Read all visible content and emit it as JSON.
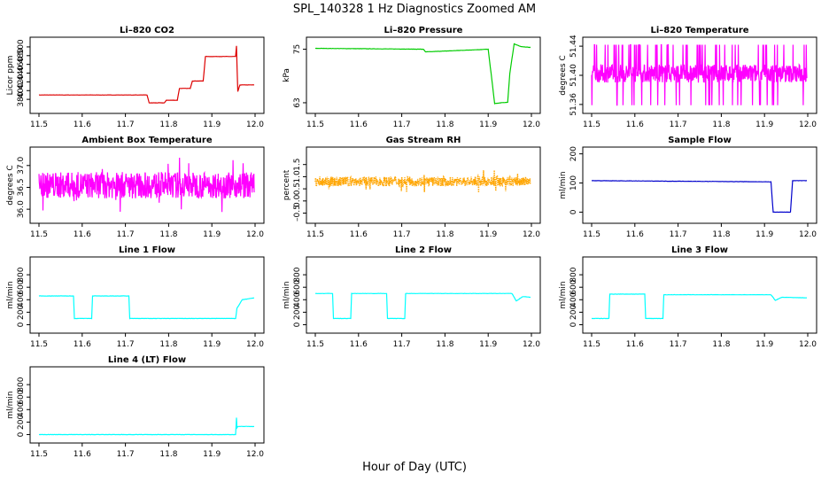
{
  "figure": {
    "title": "SPL_140328 1 Hz Diagnostics Zoomed AM",
    "xlabel": "Hour of Day (UTC)"
  },
  "chart_data": [
    {
      "type": "line",
      "title": "Li-820 CO2",
      "xlabel": "",
      "ylabel": "Licor ppm",
      "color": "#dd0000",
      "xlim": [
        11.5,
        12.0
      ],
      "ylim": [
        360,
        510
      ],
      "xticks": [
        "11.5",
        "11.6",
        "11.7",
        "11.8",
        "11.9",
        "12.0"
      ],
      "yticks": [
        380,
        400,
        420,
        440,
        460,
        480,
        500
      ],
      "x": [
        11.5,
        11.75,
        11.755,
        11.79,
        11.795,
        11.82,
        11.825,
        11.85,
        11.855,
        11.88,
        11.885,
        11.955,
        11.957,
        11.96,
        11.965,
        11.998
      ],
      "y": [
        390,
        390,
        372,
        372,
        378,
        378,
        405,
        405,
        422,
        422,
        478,
        478,
        502,
        398,
        413,
        413
      ]
    },
    {
      "type": "line",
      "title": "Li-820 Pressure",
      "xlabel": "",
      "ylabel": "kPa",
      "color": "#00cc00",
      "xlim": [
        11.5,
        12.0
      ],
      "ylim": [
        61.8,
        76.5
      ],
      "xticks": [
        "11.5",
        "11.6",
        "11.7",
        "11.8",
        "11.9",
        "12.0"
      ],
      "yticks": [
        63,
        75
      ],
      "x": [
        11.5,
        11.75,
        11.755,
        11.9,
        11.915,
        11.93,
        11.945,
        11.95,
        11.96,
        11.975,
        11.998
      ],
      "y": [
        75.2,
        75.0,
        74.4,
        75.0,
        62.8,
        63.0,
        63.1,
        69.5,
        76.2,
        75.6,
        75.4
      ]
    },
    {
      "type": "line",
      "title": "Li-820 Temperature",
      "xlabel": "",
      "ylabel": "degrees C",
      "color": "#ff00ff",
      "xlim": [
        11.5,
        12.0
      ],
      "ylim": [
        51.355,
        51.445
      ],
      "xticks": [
        "11.5",
        "11.6",
        "11.7",
        "11.8",
        "11.9",
        "12.0"
      ],
      "yticks": [
        51.36,
        51.4,
        51.44
      ],
      "band_low": 51.39,
      "band_high": 51.415
    },
    {
      "type": "line",
      "title": "Ambient Box Temperature",
      "xlabel": "",
      "ylabel": "degrees C",
      "color": "#ff00ff",
      "xlim": [
        11.5,
        12.0
      ],
      "ylim": [
        35.8,
        37.3
      ],
      "xticks": [
        "11.5",
        "11.6",
        "11.7",
        "11.8",
        "11.9",
        "12.0"
      ],
      "yticks": [
        36.0,
        36.5,
        37.0
      ],
      "band_center": 36.55,
      "band_spread": 0.6
    },
    {
      "type": "scatter",
      "title": "Gas Stream RH",
      "xlabel": "",
      "ylabel": "percent",
      "color": "#ffa500",
      "xlim": [
        11.5,
        12.0
      ],
      "ylim": [
        -0.7,
        2.0
      ],
      "xticks": [
        "11.5",
        "11.6",
        "11.7",
        "11.8",
        "11.9",
        "12.0"
      ],
      "yticks": [
        -0.5,
        0.0,
        0.5,
        1.0,
        1.5
      ],
      "band_center": 0.8,
      "band_spread": 0.4
    },
    {
      "type": "line",
      "title": "Sample Flow",
      "xlabel": "",
      "ylabel": "ml/min",
      "color": "#0000cc",
      "xlim": [
        11.5,
        12.0
      ],
      "ylim": [
        -20,
        205
      ],
      "xticks": [
        "11.5",
        "11.6",
        "11.7",
        "11.8",
        "11.9",
        "12.0"
      ],
      "yticks": [
        0,
        100,
        200
      ],
      "x": [
        11.5,
        11.915,
        11.92,
        11.96,
        11.965,
        11.998
      ],
      "y": [
        108,
        104,
        0,
        0,
        108,
        108
      ]
    },
    {
      "type": "line",
      "title": "Line 1 Flow",
      "xlabel": "",
      "ylabel": "ml/min",
      "color": "#00ffff",
      "xlim": [
        11.5,
        12.0
      ],
      "ylim": [
        -50,
        1000
      ],
      "xticks": [
        "11.5",
        "11.6",
        "11.7",
        "11.8",
        "11.9",
        "12.0"
      ],
      "yticks": [
        0,
        200,
        400,
        600,
        800
      ],
      "x": [
        11.5,
        11.58,
        11.582,
        11.622,
        11.624,
        11.708,
        11.71,
        11.955,
        11.958,
        11.97,
        11.998
      ],
      "y": [
        460,
        460,
        100,
        100,
        460,
        460,
        100,
        100,
        260,
        400,
        430
      ]
    },
    {
      "type": "line",
      "title": "Line 2 Flow",
      "xlabel": "",
      "ylabel": "ml/min",
      "color": "#00ffff",
      "xlim": [
        11.5,
        12.0
      ],
      "ylim": [
        -50,
        1000
      ],
      "xticks": [
        "11.5",
        "11.6",
        "11.7",
        "11.8",
        "11.9",
        "12.0"
      ],
      "yticks": [
        0,
        200,
        400,
        600,
        800
      ],
      "x": [
        11.5,
        11.54,
        11.542,
        11.582,
        11.584,
        11.665,
        11.667,
        11.707,
        11.709,
        11.955,
        11.965,
        11.98,
        11.998
      ],
      "y": [
        500,
        500,
        100,
        100,
        500,
        500,
        100,
        100,
        500,
        500,
        380,
        450,
        440
      ]
    },
    {
      "type": "line",
      "title": "Line 3 Flow",
      "xlabel": "",
      "ylabel": "ml/min",
      "color": "#00ffff",
      "xlim": [
        11.5,
        12.0
      ],
      "ylim": [
        -50,
        1000
      ],
      "xticks": [
        "11.5",
        "11.6",
        "11.7",
        "11.8",
        "11.9",
        "12.0"
      ],
      "yticks": [
        0,
        200,
        400,
        600,
        800
      ],
      "x": [
        11.5,
        11.54,
        11.542,
        11.623,
        11.625,
        11.665,
        11.667,
        11.915,
        11.925,
        11.94,
        11.998
      ],
      "y": [
        100,
        100,
        490,
        490,
        100,
        100,
        480,
        480,
        390,
        440,
        430
      ]
    },
    {
      "type": "line",
      "title": "Line 4 (LT) Flow",
      "xlabel": "",
      "ylabel": "ml/min",
      "color": "#00ffff",
      "xlim": [
        11.5,
        12.0
      ],
      "ylim": [
        -50,
        1000
      ],
      "xticks": [
        "11.5",
        "11.6",
        "11.7",
        "11.8",
        "11.9",
        "12.0"
      ],
      "yticks": [
        0,
        200,
        400,
        600,
        800
      ],
      "x": [
        11.5,
        11.955,
        11.957,
        11.958,
        11.96,
        11.998
      ],
      "y": [
        0,
        0,
        270,
        110,
        130,
        130
      ]
    }
  ]
}
